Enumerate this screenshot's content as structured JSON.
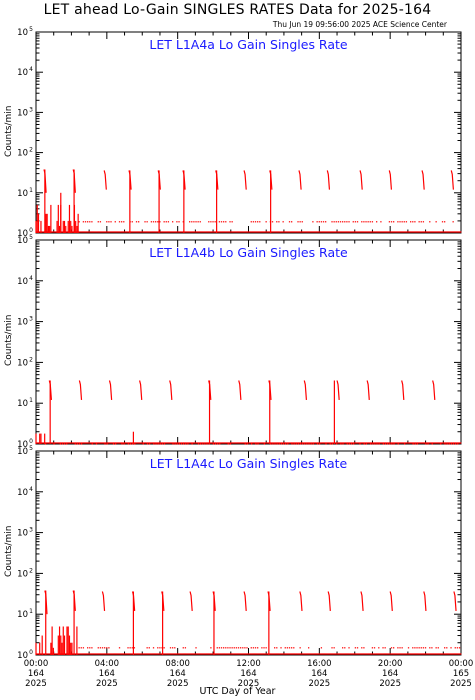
{
  "title": "LET ahead Lo-Gain SINGLES RATES Data for 2025-164",
  "timestamp": "Thu Jun 19 09:56:00 2025 ACE Science Center",
  "xlabel": "UTC Day of Year",
  "colors": {
    "data": "#ff0000",
    "panel_title": "#1a1aff",
    "axis": "#000000"
  },
  "chart_data": [
    {
      "type": "line",
      "title": "LET L1A4a Lo Gain Singles Rate",
      "ylabel": "Counts/min",
      "yscale": "log",
      "ylim": [
        1,
        100000
      ],
      "xlim": [
        0,
        24
      ],
      "x_unit": "hours UTC of day 164",
      "grid": false,
      "baseline": 1.9,
      "spikes": [
        {
          "x": 0.45,
          "high": 38,
          "low": 10
        },
        {
          "x": 2.1,
          "high": 38,
          "low": 10
        },
        {
          "x": 3.85,
          "high": 36,
          "low": 12
        },
        {
          "x": 5.25,
          "high": 36,
          "low": 12
        },
        {
          "x": 6.9,
          "high": 36,
          "low": 12
        },
        {
          "x": 8.3,
          "high": 36,
          "low": 12
        },
        {
          "x": 10.15,
          "high": 36,
          "low": 12
        },
        {
          "x": 11.75,
          "high": 36,
          "low": 12
        },
        {
          "x": 13.2,
          "high": 36,
          "low": 12
        },
        {
          "x": 14.85,
          "high": 36,
          "low": 12
        },
        {
          "x": 16.45,
          "high": 36,
          "low": 12
        },
        {
          "x": 18.3,
          "high": 36,
          "low": 12
        },
        {
          "x": 19.95,
          "high": 36,
          "low": 12
        },
        {
          "x": 21.8,
          "high": 36,
          "low": 12
        },
        {
          "x": 23.45,
          "high": 36,
          "low": 12
        }
      ],
      "drops": [
        {
          "x": 0.5,
          "high": 38
        },
        {
          "x": 1.4,
          "high": 10
        },
        {
          "x": 2.15,
          "high": 38
        },
        {
          "x": 5.3,
          "high": 36
        },
        {
          "x": 6.95,
          "high": 36
        },
        {
          "x": 8.35,
          "high": 36
        },
        {
          "x": 10.2,
          "high": 36
        },
        {
          "x": 13.25,
          "high": 36
        }
      ],
      "noise_until": 2.4,
      "noise_levels": [
        1.0,
        1.5,
        2.0,
        3.0,
        5.0
      ]
    },
    {
      "type": "line",
      "title": "LET L1A4b Lo Gain Singles Rate",
      "ylabel": "Counts/min",
      "yscale": "log",
      "ylim": [
        1,
        100000
      ],
      "xlim": [
        0,
        24
      ],
      "x_unit": "hours UTC of day 164",
      "grid": false,
      "baseline": 1.0,
      "spikes": [
        {
          "x": 0.75,
          "high": 36,
          "low": 12
        },
        {
          "x": 2.45,
          "high": 36,
          "low": 12
        },
        {
          "x": 4.15,
          "high": 36,
          "low": 12
        },
        {
          "x": 5.85,
          "high": 36,
          "low": 12
        },
        {
          "x": 7.55,
          "high": 36,
          "low": 12
        },
        {
          "x": 9.75,
          "high": 36,
          "low": 12
        },
        {
          "x": 11.45,
          "high": 36,
          "low": 12
        },
        {
          "x": 13.15,
          "high": 36,
          "low": 12
        },
        {
          "x": 15.15,
          "high": 36,
          "low": 12
        },
        {
          "x": 17.0,
          "high": 36,
          "low": 12
        },
        {
          "x": 18.7,
          "high": 36,
          "low": 12
        },
        {
          "x": 20.65,
          "high": 36,
          "low": 12
        },
        {
          "x": 22.4,
          "high": 36,
          "low": 12
        }
      ],
      "drops": [
        {
          "x": 0.8,
          "high": 36
        },
        {
          "x": 5.5,
          "high": 2
        },
        {
          "x": 9.8,
          "high": 36
        },
        {
          "x": 13.2,
          "high": 36
        },
        {
          "x": 16.85,
          "high": 36
        }
      ],
      "noise_until": 0.5,
      "noise_levels": [
        1.0,
        1.8
      ]
    },
    {
      "type": "line",
      "title": "LET L1A4c Lo Gain Singles Rate",
      "ylabel": "Counts/min",
      "yscale": "log",
      "ylim": [
        1,
        100000
      ],
      "xlim": [
        0,
        24
      ],
      "x_unit": "hours UTC of day 164",
      "grid": false,
      "baseline": 1.5,
      "spikes": [
        {
          "x": 0.5,
          "high": 38,
          "low": 10
        },
        {
          "x": 2.1,
          "high": 38,
          "low": 12
        },
        {
          "x": 3.75,
          "high": 36,
          "low": 12
        },
        {
          "x": 5.45,
          "high": 36,
          "low": 12
        },
        {
          "x": 7.1,
          "high": 36,
          "low": 12
        },
        {
          "x": 8.7,
          "high": 36,
          "low": 12
        },
        {
          "x": 10.0,
          "high": 36,
          "low": 12
        },
        {
          "x": 11.75,
          "high": 36,
          "low": 12
        },
        {
          "x": 13.1,
          "high": 36,
          "low": 12
        },
        {
          "x": 14.9,
          "high": 36,
          "low": 12
        },
        {
          "x": 16.5,
          "high": 36,
          "low": 12
        },
        {
          "x": 18.35,
          "high": 36,
          "low": 12
        },
        {
          "x": 20.0,
          "high": 36,
          "low": 12
        },
        {
          "x": 21.9,
          "high": 36,
          "low": 12
        },
        {
          "x": 23.6,
          "high": 36,
          "low": 12
        }
      ],
      "drops": [
        {
          "x": 0.55,
          "high": 38
        },
        {
          "x": 2.15,
          "high": 38
        },
        {
          "x": 5.5,
          "high": 36
        },
        {
          "x": 7.15,
          "high": 36
        },
        {
          "x": 10.05,
          "high": 36
        },
        {
          "x": 13.15,
          "high": 36
        }
      ],
      "noise_until": 2.4,
      "noise_levels": [
        1.0,
        1.5,
        2.0,
        3.0,
        5.0
      ]
    }
  ],
  "x_ticks": [
    {
      "time": "00:00",
      "day": "164",
      "year": "2025"
    },
    {
      "time": "04:00",
      "day": "164",
      "year": "2025"
    },
    {
      "time": "08:00",
      "day": "164",
      "year": "2025"
    },
    {
      "time": "12:00",
      "day": "164",
      "year": "2025"
    },
    {
      "time": "16:00",
      "day": "164",
      "year": "2025"
    },
    {
      "time": "20:00",
      "day": "164",
      "year": "2025"
    },
    {
      "time": "00:00",
      "day": "165",
      "year": "2025"
    }
  ],
  "y_tick_base": "10",
  "y_tick_exps": [
    "0",
    "1",
    "2",
    "3",
    "4",
    "5"
  ]
}
